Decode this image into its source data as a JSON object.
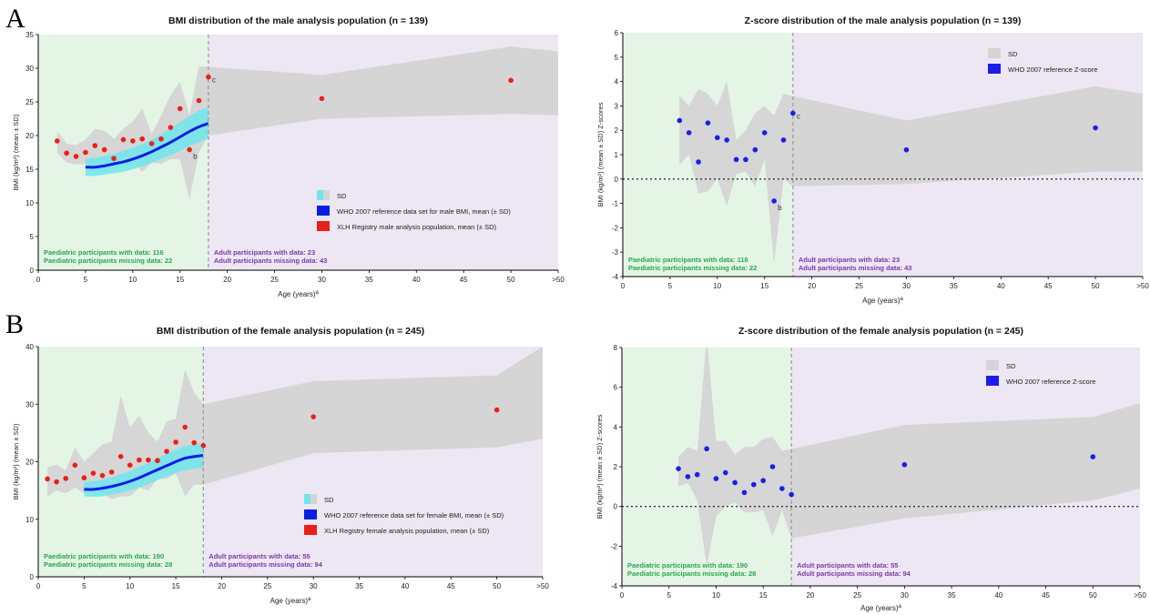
{
  "panel_letters": [
    "A",
    "B"
  ],
  "colors": {
    "paed_bg": "#e4f5e6",
    "adult_bg": "#ede6f3",
    "sd_band": "#d4d4d4",
    "who_band": "#6fe6ec",
    "who_line": "#0a1ee0",
    "registry": "#e8201a",
    "zscore_points": "#1a1ee8",
    "paed_text": "#2aa84a",
    "adult_text": "#7b3aa8",
    "divider": "#999999"
  },
  "chart_data": [
    {
      "type": "scatter",
      "title": "BMI distribution of the male analysis population (n = 139)",
      "xlabel": "Age (years)",
      "xlabel_sup": "a",
      "ylabel": "BMI (kg/m²) (mean ± SD)",
      "xlim": [
        0,
        55
      ],
      "ylim": [
        0,
        35
      ],
      "xticks": [
        0,
        5,
        10,
        15,
        20,
        25,
        30,
        35,
        40,
        45,
        50,
        55
      ],
      "xtick_labels": [
        "0",
        "5",
        "10",
        "15",
        "20",
        "25",
        "30",
        "35",
        "40",
        "45",
        "50",
        ">50"
      ],
      "yticks": [
        0,
        5,
        10,
        15,
        20,
        25,
        30,
        35
      ],
      "ytick_labels": [
        "0",
        "5",
        "10",
        "15",
        "20",
        "25",
        "30",
        "35"
      ],
      "divider_x": 18,
      "series": [
        {
          "name": "XLH Registry male analysis population, mean (± SD)",
          "kind": "points",
          "x": [
            2,
            3,
            4,
            5,
            6,
            7,
            8,
            9,
            10,
            11,
            12,
            13,
            14,
            15,
            16,
            17,
            18,
            30,
            50
          ],
          "y": [
            19.2,
            17.4,
            16.9,
            17.5,
            18.5,
            17.9,
            16.6,
            19.4,
            19.2,
            19.5,
            18.8,
            19.5,
            21.2,
            24.0,
            17.9,
            25.2,
            28.7,
            25.5,
            28.2
          ]
        },
        {
          "name": "WHO 2007 reference data set for male BMI, mean (± SD)",
          "kind": "line",
          "x": [
            5,
            6,
            7,
            8,
            9,
            10,
            11,
            12,
            13,
            14,
            15,
            16,
            17,
            18
          ],
          "y": [
            15.3,
            15.3,
            15.5,
            15.8,
            16.1,
            16.5,
            17.0,
            17.6,
            18.3,
            19.0,
            19.8,
            20.6,
            21.3,
            21.8
          ],
          "sd_lower": [
            14.0,
            14.0,
            14.2,
            14.4,
            14.6,
            15.0,
            15.4,
            15.9,
            16.5,
            17.1,
            17.7,
            18.4,
            19.0,
            19.6
          ],
          "sd_upper": [
            16.6,
            16.7,
            16.9,
            17.3,
            17.7,
            18.2,
            18.7,
            19.4,
            20.2,
            21.0,
            22.0,
            22.9,
            23.7,
            24.2
          ]
        },
        {
          "name": "SD",
          "kind": "band",
          "x": [
            2,
            3,
            4,
            5,
            6,
            7,
            8,
            9,
            10,
            11,
            12,
            13,
            14,
            15,
            16,
            17,
            18,
            30,
            50,
            55
          ],
          "lower": [
            17.5,
            16.0,
            15.7,
            15.8,
            15.2,
            14.5,
            15.5,
            17.0,
            16.2,
            14.6,
            16.0,
            15.8,
            16.5,
            16.5,
            10.5,
            17.5,
            20.0,
            22.5,
            23.2,
            23.0
          ],
          "upper": [
            20.7,
            18.8,
            18.6,
            19.4,
            21.0,
            20.7,
            19.5,
            21.0,
            22.1,
            24.0,
            20.2,
            23.0,
            26.0,
            28.0,
            23.0,
            30.3,
            30.2,
            29.0,
            33.2,
            32.5
          ]
        }
      ],
      "point_labels": [
        {
          "x": 16,
          "y": 17.9,
          "text": "b"
        },
        {
          "x": 18,
          "y": 28.7,
          "text": "c"
        }
      ],
      "legend": [
        {
          "swatch": "sd",
          "text": "SD"
        },
        {
          "swatch": "who",
          "text": "WHO 2007 reference data set for male BMI, mean (± SD)"
        },
        {
          "swatch": "registry",
          "text": "XLH Registry male analysis population, mean (± SD)"
        }
      ],
      "paed_notes": [
        "Paediatric participants with data: 116",
        "Paediatric participants missing data: 22"
      ],
      "adult_notes": [
        "Adult participants with data: 23",
        "Adult participants missing data: 43"
      ]
    },
    {
      "type": "scatter",
      "title": "Z-score distribution of the male analysis population (n = 139)",
      "xlabel": "Age (years)",
      "xlabel_sup": "a",
      "ylabel": "BMI (kg/m²) (mean ± SD) Z-scores",
      "xlim": [
        0,
        55
      ],
      "ylim": [
        -4,
        6
      ],
      "xticks": [
        0,
        5,
        10,
        15,
        20,
        25,
        30,
        35,
        40,
        45,
        50,
        55
      ],
      "xtick_labels": [
        "0",
        "5",
        "10",
        "15",
        "20",
        "25",
        "30",
        "35",
        "40",
        "45",
        "50",
        ">50"
      ],
      "yticks": [
        -4,
        -3,
        -2,
        -1,
        0,
        1,
        2,
        3,
        4,
        5,
        6
      ],
      "ytick_labels": [
        "-4",
        "-3",
        "-2",
        "-1",
        "0",
        "1",
        "2",
        "3",
        "4",
        "5",
        "6"
      ],
      "divider_x": 18,
      "zero_line": true,
      "series": [
        {
          "name": "WHO 2007 reference Z-score",
          "kind": "points",
          "x": [
            6,
            7,
            8,
            9,
            10,
            11,
            12,
            13,
            14,
            15,
            16,
            17,
            18,
            30,
            50
          ],
          "y": [
            2.4,
            1.9,
            0.7,
            2.3,
            1.7,
            1.6,
            0.8,
            0.8,
            1.2,
            1.9,
            -0.9,
            1.6,
            2.7,
            1.2,
            2.1
          ]
        },
        {
          "name": "SD",
          "kind": "band",
          "x": [
            6,
            7,
            8,
            9,
            10,
            11,
            12,
            13,
            14,
            15,
            16,
            17,
            18,
            30,
            50,
            55
          ],
          "lower": [
            0.6,
            1.0,
            -0.6,
            -0.5,
            0.0,
            -1.1,
            0.2,
            0.3,
            -0.3,
            0.8,
            -3.5,
            0.0,
            -0.3,
            -0.2,
            0.3,
            0.3
          ],
          "upper": [
            3.4,
            3.0,
            3.7,
            3.5,
            3.0,
            4.0,
            1.6,
            2.0,
            2.7,
            3.0,
            2.6,
            3.5,
            3.4,
            2.4,
            3.8,
            3.5
          ]
        }
      ],
      "point_labels": [
        {
          "x": 16,
          "y": -0.9,
          "text": "b"
        },
        {
          "x": 18,
          "y": 2.7,
          "text": "c"
        }
      ],
      "legend": [
        {
          "swatch": "sd",
          "text": "SD"
        },
        {
          "swatch": "z",
          "text": "WHO 2007 reference Z-score"
        }
      ],
      "paed_notes": [
        "Paediatric participants with data: 116",
        "Paediatric participants missing data: 22"
      ],
      "adult_notes": [
        "Adult participants with data: 23",
        "Adult participants missing data: 43"
      ]
    },
    {
      "type": "scatter",
      "title": "BMI distribution of the female analysis population (n = 245)",
      "xlabel": "Age (years)",
      "xlabel_sup": "a",
      "ylabel": "BMI (kg/m²) (mean ± SD)",
      "xlim": [
        0,
        55
      ],
      "ylim": [
        0,
        40
      ],
      "xticks": [
        0,
        5,
        10,
        15,
        20,
        25,
        30,
        35,
        40,
        45,
        50,
        55
      ],
      "xtick_labels": [
        "0",
        "5",
        "10",
        "15",
        "20",
        "25",
        "30",
        "35",
        "40",
        "45",
        "50",
        ">50"
      ],
      "yticks": [
        0,
        10,
        20,
        30,
        40
      ],
      "ytick_labels": [
        "0",
        "10",
        "20",
        "30",
        "40"
      ],
      "divider_x": 18,
      "series": [
        {
          "name": "XLH Registry female analysis population, mean (± SD)",
          "kind": "points",
          "x": [
            1,
            2,
            3,
            4,
            5,
            6,
            7,
            8,
            9,
            10,
            11,
            12,
            13,
            14,
            15,
            16,
            17,
            18,
            30,
            50
          ],
          "y": [
            17.0,
            16.5,
            17.1,
            19.4,
            17.2,
            18.0,
            17.6,
            18.2,
            20.9,
            19.4,
            20.3,
            20.3,
            20.2,
            21.8,
            23.4,
            26.0,
            23.3,
            22.8,
            27.8,
            29.0
          ]
        },
        {
          "name": "WHO 2007 reference data set for female BMI, mean (± SD)",
          "kind": "line",
          "x": [
            5,
            6,
            7,
            8,
            9,
            10,
            11,
            12,
            13,
            14,
            15,
            16,
            17,
            18
          ],
          "y": [
            15.2,
            15.2,
            15.4,
            15.7,
            16.1,
            16.6,
            17.2,
            17.9,
            18.6,
            19.3,
            20.0,
            20.6,
            20.9,
            21.1
          ],
          "sd_lower": [
            14.0,
            13.9,
            14.0,
            14.3,
            14.6,
            15.0,
            15.5,
            16.1,
            16.8,
            17.4,
            18.0,
            18.5,
            18.8,
            19.0
          ],
          "sd_upper": [
            16.5,
            16.6,
            16.9,
            17.3,
            17.8,
            18.4,
            19.1,
            19.8,
            20.6,
            21.4,
            22.1,
            22.7,
            23.0,
            23.2
          ]
        },
        {
          "name": "SD",
          "kind": "band",
          "x": [
            1,
            2,
            3,
            4,
            5,
            6,
            7,
            8,
            9,
            10,
            11,
            12,
            13,
            14,
            15,
            16,
            17,
            18,
            30,
            50,
            55
          ],
          "lower": [
            14.0,
            15.0,
            14.5,
            15.5,
            14.5,
            15.0,
            14.5,
            13.5,
            14.0,
            14.0,
            15.5,
            15.0,
            17.0,
            17.0,
            18.0,
            14.0,
            16.0,
            16.0,
            21.5,
            22.5,
            24.0
          ],
          "upper": [
            19.0,
            19.5,
            18.5,
            22.5,
            20.0,
            21.5,
            23.0,
            23.5,
            31.5,
            26.0,
            28.0,
            25.0,
            23.5,
            27.0,
            27.5,
            36.0,
            32.0,
            30.0,
            34.0,
            35.0,
            40.0
          ]
        }
      ],
      "point_labels": [],
      "legend": [
        {
          "swatch": "sd",
          "text": "SD"
        },
        {
          "swatch": "who",
          "text": "WHO 2007 reference data set for female BMI, mean (± SD)"
        },
        {
          "swatch": "registry",
          "text": "XLH Registry female analysis population, mean (± SD)"
        }
      ],
      "paed_notes": [
        "Paediatric participants with data: 190",
        "Paediatric participants missing data: 28"
      ],
      "adult_notes": [
        "Adult participants with data: 55",
        "Adult participants missing data: 94"
      ]
    },
    {
      "type": "scatter",
      "title": "Z-score distribution of the female analysis population (n = 245)",
      "xlabel": "Age (years)",
      "xlabel_sup": "a",
      "ylabel": "BMI (kg/m²) (mean ± SD) Z-scores",
      "xlim": [
        0,
        55
      ],
      "ylim": [
        -4,
        8
      ],
      "xticks": [
        0,
        5,
        10,
        15,
        20,
        25,
        30,
        35,
        40,
        45,
        50,
        55
      ],
      "xtick_labels": [
        "0",
        "5",
        "10",
        "15",
        "20",
        "25",
        "30",
        "35",
        "40",
        "45",
        "50",
        ">50"
      ],
      "yticks": [
        -4,
        -2,
        0,
        2,
        4,
        6,
        8
      ],
      "ytick_labels": [
        "-4",
        "-2",
        "0",
        "2",
        "4",
        "6",
        "8"
      ],
      "divider_x": 18,
      "zero_line": true,
      "series": [
        {
          "name": "WHO 2007 reference Z-score",
          "kind": "points",
          "x": [
            6,
            7,
            8,
            9,
            10,
            11,
            12,
            13,
            14,
            15,
            16,
            17,
            18,
            30,
            50
          ],
          "y": [
            1.9,
            1.5,
            1.6,
            2.9,
            1.4,
            1.7,
            1.2,
            0.7,
            1.1,
            1.3,
            2.0,
            0.9,
            0.6,
            2.1,
            2.5
          ]
        },
        {
          "name": "SD",
          "kind": "band",
          "x": [
            6,
            7,
            8,
            9,
            10,
            11,
            12,
            13,
            14,
            15,
            16,
            17,
            18,
            30,
            50,
            55
          ],
          "lower": [
            1.0,
            1.2,
            0.3,
            -3.0,
            -0.5,
            0.0,
            0.2,
            -0.3,
            -0.3,
            -0.2,
            -1.5,
            -0.2,
            -1.6,
            -0.6,
            0.3,
            0.9
          ],
          "upper": [
            2.5,
            3.0,
            2.8,
            8.5,
            3.3,
            3.3,
            2.6,
            3.0,
            3.0,
            3.4,
            3.5,
            2.8,
            2.9,
            4.1,
            4.5,
            5.2
          ]
        }
      ],
      "point_labels": [],
      "legend": [
        {
          "swatch": "sd",
          "text": "SD"
        },
        {
          "swatch": "z",
          "text": "WHO 2007 reference Z-score"
        }
      ],
      "paed_notes": [
        "Paediatric participants with data: 190",
        "Paediatric participants missing data: 28"
      ],
      "adult_notes": [
        "Adult participants with data: 55",
        "Adult participants missing data: 94"
      ]
    }
  ]
}
